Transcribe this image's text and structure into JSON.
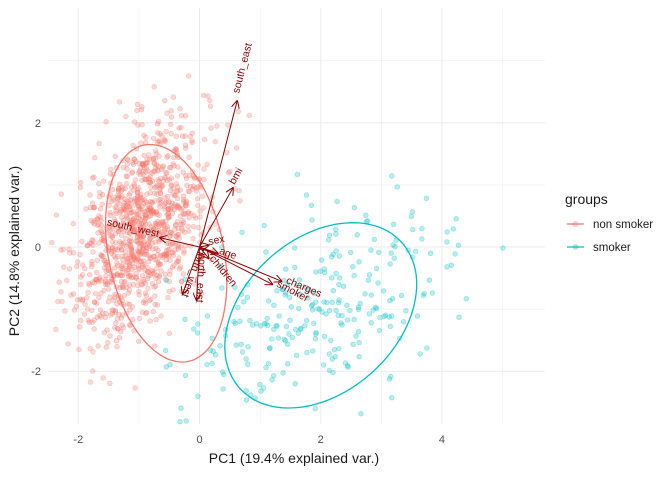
{
  "chart_data": {
    "type": "scatter",
    "title": "",
    "xlabel": "PC1 (19.4% explained var.)",
    "ylabel": "PC2 (14.8% explained var.)",
    "xlim": [
      -2.5,
      5.7
    ],
    "ylim": [
      -2.85,
      3.85
    ],
    "x_ticks": [
      -2,
      0,
      2,
      4
    ],
    "y_ticks": [
      -2,
      0,
      2
    ],
    "grid": true,
    "legend": {
      "title": "groups",
      "position": "right",
      "entries": [
        {
          "label": "non smoker",
          "color": "#F8766D"
        },
        {
          "label": "smoker",
          "color": "#00BFC4"
        }
      ]
    },
    "series": [
      {
        "name": "non smoker",
        "color": "#F8766D",
        "cluster": {
          "center": [
            -0.95,
            0.3
          ],
          "sd": [
            0.55,
            0.85
          ],
          "corr": 0.45,
          "n": 1064
        },
        "ellipse": {
          "center": [
            -0.55,
            -0.1
          ],
          "semi_axes": [
            0.95,
            1.78
          ],
          "angle_deg": 12
        }
      },
      {
        "name": "smoker",
        "color": "#00BFC4",
        "cluster": {
          "center": [
            2.0,
            -0.95
          ],
          "sd": [
            1.15,
            0.8
          ],
          "corr": 0.45,
          "n": 274
        },
        "ellipse": {
          "center": [
            2.0,
            -1.1
          ],
          "semi_axes": [
            1.78,
            1.25
          ],
          "angle_deg": 40
        }
      }
    ],
    "loadings": [
      {
        "label": "south_east",
        "end": [
          0.62,
          2.35
        ]
      },
      {
        "label": "bmi",
        "end": [
          0.55,
          0.95
        ]
      },
      {
        "label": "south_west",
        "end": [
          -0.65,
          0.15
        ]
      },
      {
        "label": "sex",
        "end": [
          0.15,
          0.03
        ]
      },
      {
        "label": "age",
        "end": [
          0.3,
          -0.1
        ]
      },
      {
        "label": "children",
        "end": [
          0.15,
          -0.18
        ]
      },
      {
        "label": "charges",
        "end": [
          1.35,
          -0.55
        ]
      },
      {
        "label": "smoker",
        "end": [
          1.2,
          -0.6
        ]
      },
      {
        "label": "north_west",
        "end": [
          -0.28,
          -0.75
        ]
      },
      {
        "label": "north_east",
        "end": [
          -0.05,
          -0.85
        ]
      }
    ]
  }
}
